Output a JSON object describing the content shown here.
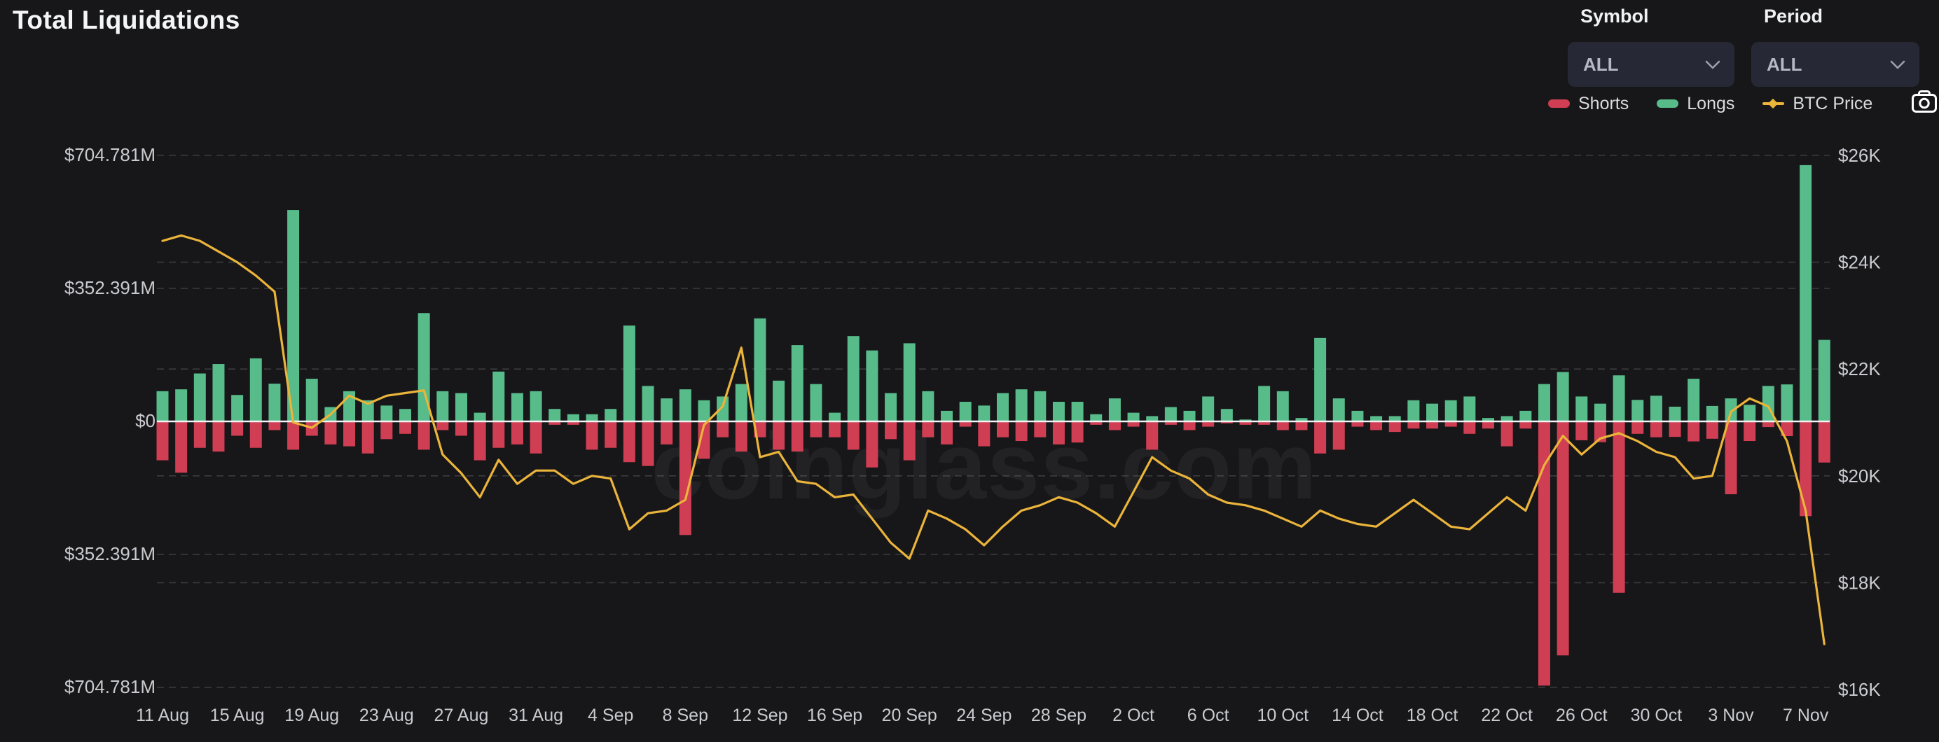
{
  "header": {
    "title": "Total Liquidations"
  },
  "controls": {
    "symbol": {
      "label": "Symbol",
      "value": "ALL"
    },
    "period": {
      "label": "Period",
      "value": "ALL"
    }
  },
  "legend": [
    {
      "name": "Shorts",
      "color": "#cf3e52"
    },
    {
      "name": "Longs",
      "color": "#57bb8a"
    },
    {
      "name": "BTC Price",
      "color": "#ebb43a"
    }
  ],
  "watermark": "coinglass.com",
  "colors": {
    "background": "#17171a",
    "longs": "#57bb8a",
    "shorts": "#cf3e52",
    "btc_line": "#ebb43a",
    "grid": "rgba(255,255,255,0.16)",
    "zero_line": "#f2f3f5",
    "axis_text": "#cacbd0",
    "watermark": "rgba(255,255,255,0.05)"
  },
  "chart_data": {
    "type": "bar",
    "title": "Total Liquidations",
    "x": [
      "11 Aug",
      "12 Aug",
      "13 Aug",
      "14 Aug",
      "15 Aug",
      "16 Aug",
      "17 Aug",
      "18 Aug",
      "19 Aug",
      "20 Aug",
      "21 Aug",
      "22 Aug",
      "23 Aug",
      "24 Aug",
      "25 Aug",
      "26 Aug",
      "27 Aug",
      "28 Aug",
      "29 Aug",
      "30 Aug",
      "31 Aug",
      "1 Sep",
      "2 Sep",
      "3 Sep",
      "4 Sep",
      "5 Sep",
      "6 Sep",
      "7 Sep",
      "8 Sep",
      "9 Sep",
      "10 Sep",
      "11 Sep",
      "12 Sep",
      "13 Sep",
      "14 Sep",
      "15 Sep",
      "16 Sep",
      "17 Sep",
      "18 Sep",
      "19 Sep",
      "20 Sep",
      "21 Sep",
      "22 Sep",
      "23 Sep",
      "24 Sep",
      "25 Sep",
      "26 Sep",
      "27 Sep",
      "28 Sep",
      "29 Sep",
      "30 Sep",
      "1 Oct",
      "2 Oct",
      "3 Oct",
      "4 Oct",
      "5 Oct",
      "6 Oct",
      "7 Oct",
      "8 Oct",
      "9 Oct",
      "10 Oct",
      "11 Oct",
      "12 Oct",
      "13 Oct",
      "14 Oct",
      "15 Oct",
      "16 Oct",
      "17 Oct",
      "18 Oct",
      "19 Oct",
      "20 Oct",
      "21 Oct",
      "22 Oct",
      "23 Oct",
      "24 Oct",
      "25 Oct",
      "26 Oct",
      "27 Oct",
      "28 Oct",
      "29 Oct",
      "30 Oct",
      "31 Oct",
      "1 Nov",
      "2 Nov",
      "3 Nov",
      "4 Nov",
      "5 Nov",
      "6 Nov",
      "7 Nov",
      "8 Nov"
    ],
    "x_tick_labels": [
      "11 Aug",
      "15 Aug",
      "19 Aug",
      "23 Aug",
      "27 Aug",
      "31 Aug",
      "4 Sep",
      "8 Sep",
      "12 Sep",
      "16 Sep",
      "20 Sep",
      "24 Sep",
      "28 Sep",
      "2 Oct",
      "6 Oct",
      "10 Oct",
      "14 Oct",
      "18 Oct",
      "22 Oct",
      "26 Oct",
      "30 Oct",
      "3 Nov",
      "7 Nov"
    ],
    "x_tick_every": 4,
    "series": [
      {
        "name": "Longs",
        "type": "bar",
        "axis": "left",
        "unit": "USD millions",
        "direction": "up",
        "color": "#57bb8a",
        "values": [
          80,
          85,
          127,
          152,
          70,
          167,
          100,
          560,
          113,
          38,
          80,
          56,
          42,
          33,
          287,
          80,
          75,
          23,
          132,
          75,
          80,
          33,
          19,
          19,
          33,
          254,
          94,
          61,
          85,
          56,
          66,
          99,
          273,
          108,
          202,
          99,
          23,
          226,
          188,
          75,
          207,
          80,
          28,
          52,
          42,
          75,
          85,
          80,
          52,
          52,
          19,
          61,
          23,
          14,
          38,
          28,
          66,
          33,
          5,
          94,
          80,
          9,
          221,
          61,
          28,
          14,
          14,
          56,
          47,
          56,
          66,
          9,
          14,
          28,
          99,
          131,
          66,
          47,
          122,
          57,
          68,
          39,
          113,
          41,
          61,
          44,
          94,
          98,
          679,
          216
        ]
      },
      {
        "name": "Shorts",
        "type": "bar",
        "axis": "left",
        "unit": "USD millions",
        "direction": "down",
        "color": "#cf3e52",
        "values": [
          103,
          136,
          70,
          80,
          38,
          70,
          23,
          75,
          38,
          61,
          66,
          85,
          47,
          33,
          75,
          23,
          38,
          103,
          70,
          61,
          85,
          9,
          9,
          75,
          70,
          108,
          118,
          61,
          301,
          99,
          42,
          80,
          42,
          75,
          80,
          42,
          42,
          75,
          122,
          47,
          103,
          42,
          61,
          14,
          66,
          42,
          52,
          42,
          61,
          56,
          9,
          23,
          14,
          75,
          9,
          23,
          14,
          5,
          9,
          9,
          23,
          23,
          85,
          75,
          14,
          23,
          28,
          19,
          19,
          14,
          33,
          19,
          66,
          19,
          700,
          620,
          50,
          55,
          454,
          33,
          42,
          41,
          53,
          46,
          193,
          52,
          15,
          39,
          251,
          109
        ]
      },
      {
        "name": "BTC Price",
        "type": "line",
        "axis": "right",
        "unit": "USD thousands",
        "color": "#ebb43a",
        "values": [
          24.4,
          24.5,
          24.4,
          24.2,
          24.0,
          23.75,
          23.45,
          21.0,
          20.9,
          21.15,
          21.5,
          21.35,
          21.5,
          21.55,
          21.6,
          20.4,
          20.05,
          19.6,
          20.3,
          19.85,
          20.1,
          20.1,
          19.85,
          20.0,
          19.95,
          19.0,
          19.3,
          19.35,
          19.55,
          20.95,
          21.3,
          22.4,
          20.35,
          20.45,
          19.9,
          19.85,
          19.6,
          19.65,
          19.2,
          18.75,
          18.45,
          19.35,
          19.2,
          19.0,
          18.7,
          19.05,
          19.35,
          19.45,
          19.6,
          19.5,
          19.3,
          19.05,
          19.7,
          20.35,
          20.1,
          19.95,
          19.65,
          19.5,
          19.45,
          19.35,
          19.2,
          19.05,
          19.35,
          19.2,
          19.1,
          19.05,
          19.3,
          19.55,
          19.3,
          19.05,
          19.0,
          19.3,
          19.6,
          19.35,
          20.2,
          20.75,
          20.4,
          20.7,
          20.8,
          20.65,
          20.45,
          20.35,
          19.95,
          20.0,
          21.2,
          21.45,
          21.3,
          20.65,
          19.35,
          16.85
        ]
      }
    ],
    "left_axis": {
      "tick_labels": [
        "$704.781M",
        "$352.391M",
        "$0",
        "$352.391M",
        "$704.781M"
      ],
      "tick_values": [
        704.781,
        352.391,
        0,
        -352.391,
        -704.781
      ],
      "max": 704.781
    },
    "right_axis": {
      "tick_labels": [
        "$26K",
        "$24K",
        "$22K",
        "$20K",
        "$18K",
        "$16K"
      ],
      "tick_values": [
        26,
        24,
        22,
        20,
        18,
        16
      ],
      "min": 16,
      "max": 26
    },
    "grid": "dashed horizontal",
    "legend_position": "top-right"
  }
}
